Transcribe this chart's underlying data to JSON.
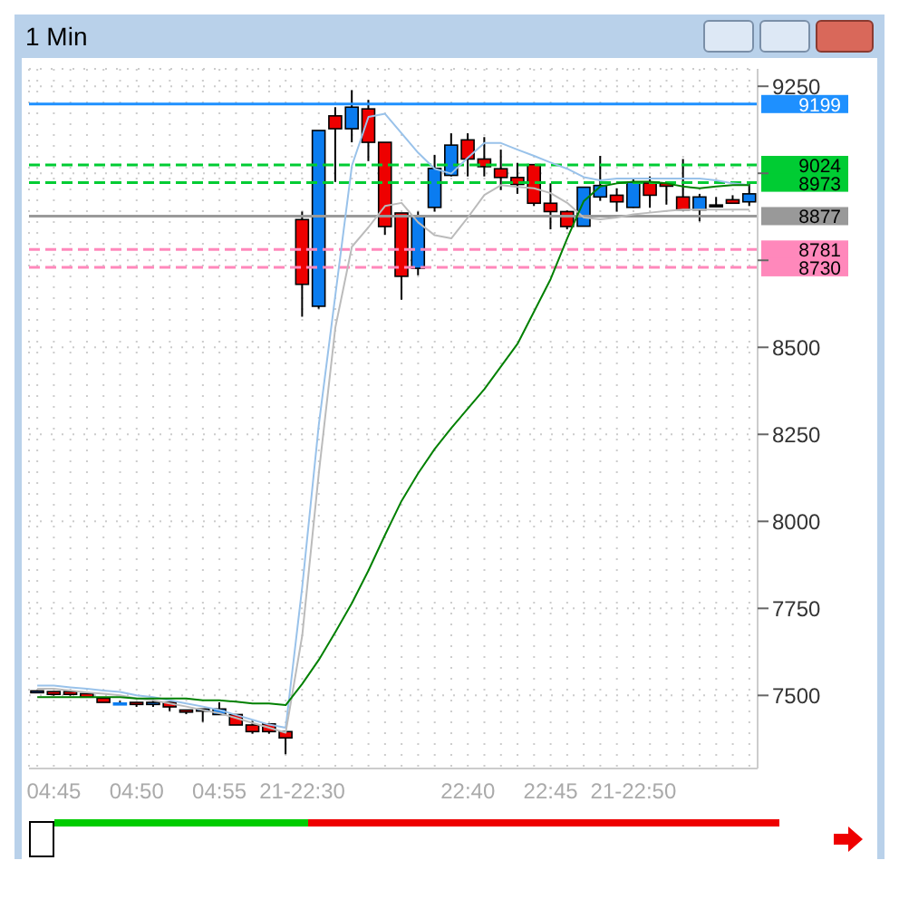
{
  "chart_data": {
    "type": "candlestick",
    "title": "1 Min",
    "categories": [
      null,
      "04:45",
      null,
      null,
      null,
      null,
      "04:50",
      null,
      null,
      null,
      null,
      "04:55",
      null,
      null,
      null,
      null,
      "21-22:30",
      null,
      null,
      null,
      null,
      null,
      null,
      null,
      null,
      null,
      "22:40",
      null,
      null,
      null,
      null,
      "22:45",
      null,
      null,
      null,
      null,
      "21-22:50",
      null,
      null,
      null,
      null,
      null,
      null,
      null
    ],
    "ohlc": [
      [
        7509,
        7513,
        7509,
        7513
      ],
      [
        7511,
        7511,
        7499,
        7503
      ],
      [
        7511,
        7511,
        7499,
        7503
      ],
      [
        7505,
        7505,
        7493,
        7495
      ],
      [
        7492,
        7492,
        7480,
        7480
      ],
      [
        7478,
        7484,
        7473,
        7478
      ],
      [
        7480,
        7480,
        7467,
        7474
      ],
      [
        7474,
        7489,
        7467,
        7480
      ],
      [
        7480,
        7480,
        7455,
        7467
      ],
      [
        7458,
        7458,
        7446,
        7452
      ],
      [
        7455,
        7461,
        7424,
        7461
      ],
      [
        7445,
        7480,
        7445,
        7461
      ],
      [
        7445,
        7445,
        7415,
        7415
      ],
      [
        7415,
        7427,
        7390,
        7396
      ],
      [
        7418,
        7418,
        7390,
        7396
      ],
      [
        7396,
        7396,
        7331,
        7378
      ],
      [
        8867,
        8890,
        8588,
        8681
      ],
      [
        8618,
        9123,
        8611,
        9123
      ],
      [
        9165,
        9190,
        8975,
        9128
      ],
      [
        9128,
        9239,
        9089,
        9190
      ],
      [
        9185,
        9211,
        9035,
        9089
      ],
      [
        9089,
        9089,
        8823,
        8847
      ],
      [
        8886,
        8886,
        8637,
        8704
      ],
      [
        8727,
        8890,
        8707,
        8878
      ],
      [
        8902,
        9053,
        8890,
        9014
      ],
      [
        8994,
        9115,
        8991,
        9081
      ],
      [
        9096,
        9115,
        8991,
        9041
      ],
      [
        9041,
        9104,
        8991,
        9019
      ],
      [
        9013,
        9068,
        8952,
        8988
      ],
      [
        8988,
        9030,
        8941,
        8968
      ],
      [
        9025,
        9025,
        8906,
        8914
      ],
      [
        8914,
        8971,
        8839,
        8890
      ],
      [
        8890,
        8893,
        8839,
        8847
      ],
      [
        8848,
        8960,
        8848,
        8960
      ],
      [
        8932,
        9050,
        8921,
        8965
      ],
      [
        8937,
        8957,
        8890,
        8918
      ],
      [
        8902,
        8983,
        8901,
        8975
      ],
      [
        8972,
        8991,
        8901,
        8937
      ],
      [
        8971,
        8971,
        8910,
        8963
      ],
      [
        8932,
        9041,
        8895,
        8895
      ],
      [
        8895,
        8941,
        8862,
        8932
      ],
      [
        8909,
        8932,
        8902,
        8909
      ],
      [
        8924,
        8937,
        8914,
        8914
      ],
      [
        8918,
        8975,
        8906,
        8941
      ]
    ],
    "colors": [
      "#0a7cf0",
      "#ee0000",
      "#ee0000",
      "#ee0000",
      "#ee0000",
      "#0a7cf0",
      "#ee0000",
      "#0a7cf0",
      "#ee0000",
      "#ee0000",
      "#0a7cf0",
      "#0a7cf0",
      "#ee0000",
      "#ee0000",
      "#ee0000",
      "#ee0000",
      "#ee0000",
      "#0a7cf0",
      "#ee0000",
      "#0a7cf0",
      "#ee0000",
      "#ee0000",
      "#ee0000",
      "#0a7cf0",
      "#0a7cf0",
      "#0a7cf0",
      "#ee0000",
      "#ee0000",
      "#ee0000",
      "#ee0000",
      "#ee0000",
      "#ee0000",
      "#ee0000",
      "#0a7cf0",
      "#0a7cf0",
      "#ee0000",
      "#0a7cf0",
      "#ee0000",
      "#ee0000",
      "#ee0000",
      "#0a7cf0",
      "#000000",
      "#ee0000",
      "#0a7cf0"
    ],
    "series": [
      {
        "type": "line",
        "color": "#99c2ea",
        "values": [
          7528,
          7528,
          7523,
          7519,
          7514,
          7510,
          7500,
          7495,
          7486,
          7477,
          7468,
          7458,
          7444,
          7430,
          7416,
          7407,
          7812,
          8277,
          8650,
          9022,
          9162,
          9171,
          9115,
          9059,
          9013,
          8999,
          9045,
          9087,
          9087,
          9068,
          9050,
          9031,
          9013,
          8989,
          8980,
          8985,
          8985,
          8985,
          8985,
          8985,
          8985,
          8980,
          8971,
          8966
        ]
      },
      {
        "type": "line",
        "color": "#bbbbbb",
        "values": [
          7519,
          7519,
          7514,
          7509,
          7505,
          7500,
          7491,
          7486,
          7477,
          7468,
          7458,
          7449,
          7435,
          7421,
          7407,
          7393,
          7672,
          8138,
          8557,
          8789,
          8845,
          8906,
          8915,
          8859,
          8822,
          8813,
          8873,
          8938,
          8966,
          8961,
          8957,
          8943,
          8915,
          8873,
          8868,
          8873,
          8882,
          8887,
          8892,
          8896,
          8896,
          8896,
          8896,
          8896
        ]
      },
      {
        "type": "line",
        "color": "#008000",
        "values": [
          7495,
          7495,
          7495,
          7495,
          7495,
          7495,
          7491,
          7491,
          7491,
          7491,
          7486,
          7486,
          7482,
          7477,
          7477,
          7472,
          7533,
          7602,
          7682,
          7765,
          7859,
          7961,
          8059,
          8138,
          8208,
          8268,
          8324,
          8380,
          8445,
          8510,
          8603,
          8696,
          8813,
          8920,
          8962,
          8971,
          8976,
          8976,
          8971,
          8962,
          8957,
          8962,
          8966,
          8966
        ]
      }
    ],
    "ylim": [
      7290,
      9300
    ],
    "yticks": [
      7500,
      7750,
      8000,
      8250,
      8500,
      {
        "value": 8750,
        "label": null
      },
      {
        "value": 9000,
        "label": null
      },
      9250
    ],
    "ref_lines": [
      {
        "axis": "y",
        "value": 9199,
        "label": "9199",
        "color": "#1e90ff",
        "line_style": "solid"
      },
      {
        "axis": "y",
        "value": 9024,
        "label": "9024",
        "color": "#00cc33",
        "line_style": "dashed"
      },
      {
        "axis": "y",
        "value": 8973,
        "label": "8973",
        "color": "#00cc33",
        "line_style": "dashed"
      },
      {
        "axis": "y",
        "value": 8877,
        "label": "8877",
        "color": "#999999",
        "line_style": "solid"
      },
      {
        "axis": "y",
        "value": 8781,
        "label": "8781",
        "color": "#ff88bb",
        "line_style": "dashed"
      },
      {
        "axis": "y",
        "value": 8730,
        "label": "8730",
        "color": "#ff88bb",
        "line_style": "dashed"
      }
    ],
    "grid": true
  }
}
